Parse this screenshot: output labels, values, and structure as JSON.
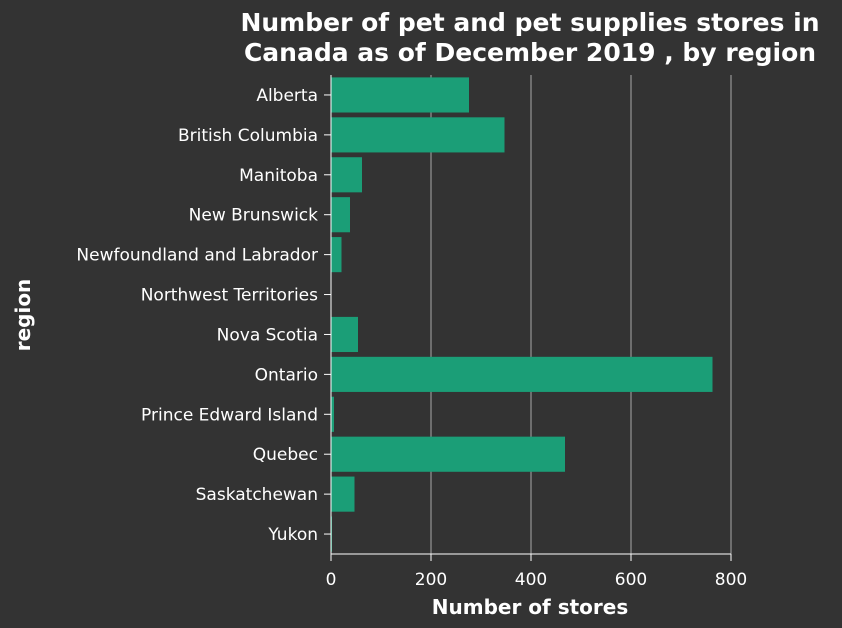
{
  "chart_data": {
    "type": "bar",
    "orientation": "horizontal",
    "title_lines": [
      "Number of pet and pet supplies stores in",
      "Canada as of December 2019 , by region"
    ],
    "xlabel": "Number of stores",
    "ylabel": "region",
    "xlim": [
      0,
      800
    ],
    "x_ticks": [
      0,
      200,
      400,
      600,
      800
    ],
    "grid": "vertical",
    "bar_color": "#1b9e77",
    "background_color": "#333333",
    "categories": [
      "Alberta",
      "British Columbia",
      "Manitoba",
      "New Brunswick",
      "Newfoundland and Labrador",
      "Northwest Territories",
      "Nova Scotia",
      "Ontario",
      "Prince Edward Island",
      "Quebec",
      "Saskatchewan",
      "Yukon"
    ],
    "values": [
      276,
      347,
      62,
      38,
      21,
      1,
      54,
      763,
      6,
      468,
      47,
      2
    ]
  }
}
